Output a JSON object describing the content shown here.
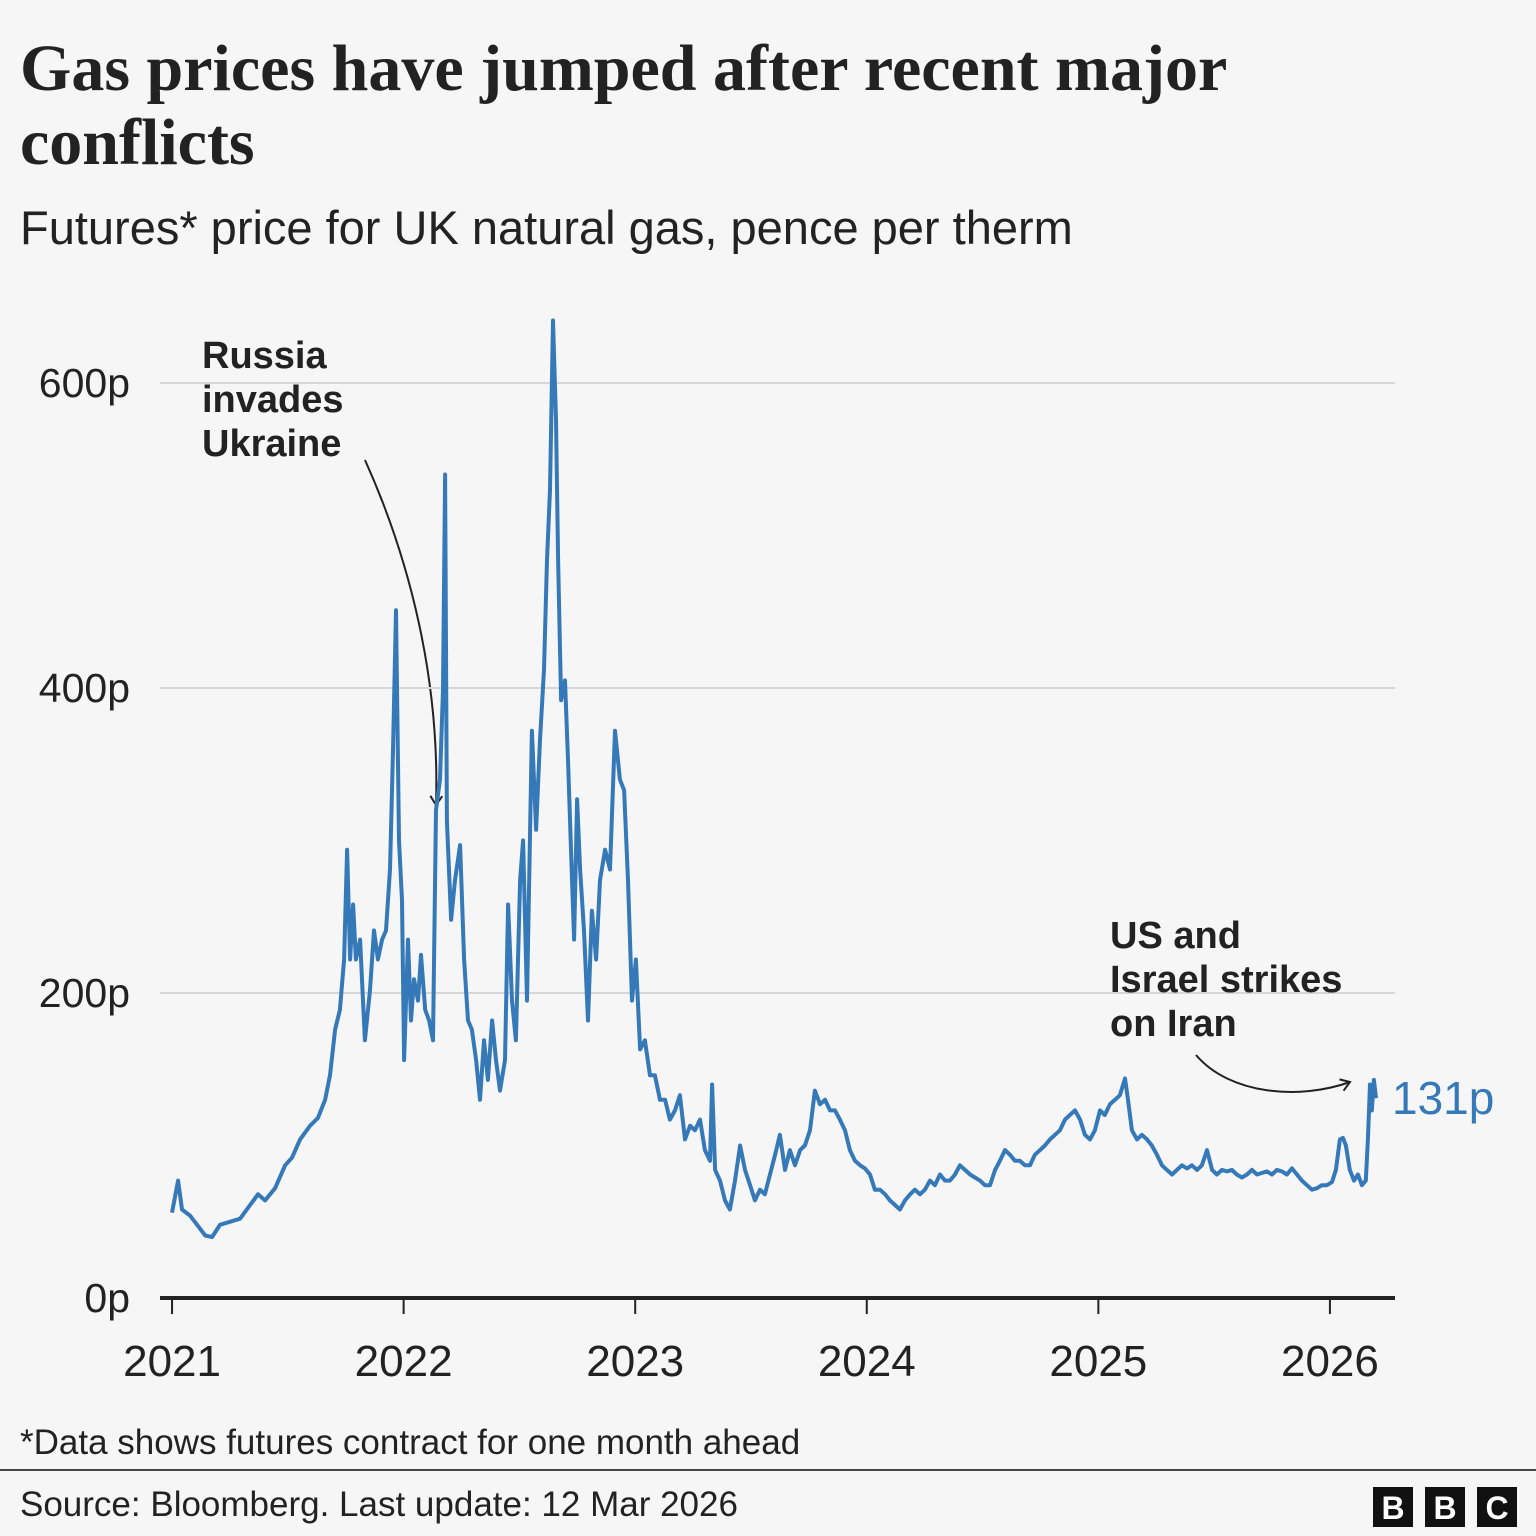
{
  "chart_data": {
    "type": "line",
    "title": "Gas prices have jumped after recent major conflicts",
    "subtitle": "Futures* price for UK natural gas, pence per therm",
    "footnote": "*Data shows futures contract for one month ahead",
    "source": "Source: Bloomberg. Last update: 12 Mar 2026",
    "logo": [
      "B",
      "B",
      "C"
    ],
    "color": "#3579b9",
    "grid": true,
    "xlim": [
      2020.948,
      2026.281
    ],
    "xticks": [
      2021,
      2022,
      2023,
      2024,
      2025,
      2026
    ],
    "ylim": [
      0,
      640
    ],
    "yticks": [
      {
        "value": 0,
        "label": "0p"
      },
      {
        "value": 200,
        "label": "200p"
      },
      {
        "value": 400,
        "label": "400p"
      },
      {
        "value": 600,
        "label": "600p"
      }
    ],
    "end_label": "131p",
    "annotations": [
      {
        "lines": [
          "Russia",
          "invades",
          "Ukraine"
        ]
      },
      {
        "lines": [
          "US and",
          "Israel strikes",
          "on Iran"
        ]
      }
    ],
    "x": [
      2021.0,
      2021.026,
      2021.043,
      2021.078,
      2021.108,
      2021.143,
      2021.173,
      2021.207,
      2021.25,
      2021.294,
      2021.337,
      2021.371,
      2021.402,
      2021.445,
      2021.488,
      2021.518,
      2021.553,
      2021.596,
      2021.63,
      2021.661,
      2021.682,
      2021.704,
      2021.725,
      2021.743,
      2021.756,
      2021.769,
      2021.782,
      2021.794,
      2021.812,
      2021.833,
      2021.855,
      2021.872,
      2021.889,
      2021.907,
      2021.924,
      2021.941,
      2021.954,
      2021.967,
      2021.98,
      2021.993,
      2022.002,
      2022.019,
      2022.032,
      2022.045,
      2022.062,
      2022.075,
      2022.093,
      2022.11,
      2022.127,
      2022.14,
      2022.157,
      2022.17,
      2022.179,
      2022.187,
      2022.205,
      2022.222,
      2022.244,
      2022.261,
      2022.278,
      2022.295,
      2022.313,
      2022.33,
      2022.347,
      2022.364,
      2022.382,
      2022.399,
      2022.416,
      2022.438,
      2022.451,
      2022.468,
      2022.485,
      2022.503,
      2022.516,
      2022.533,
      2022.554,
      2022.572,
      2022.589,
      2022.606,
      2022.619,
      2022.632,
      2022.645,
      2022.658,
      2022.667,
      2022.68,
      2022.697,
      2022.71,
      2022.723,
      2022.736,
      2022.749,
      2022.762,
      2022.779,
      2022.796,
      2022.813,
      2022.831,
      2022.848,
      2022.87,
      2022.891,
      2022.913,
      2022.934,
      2022.952,
      2022.969,
      2022.986,
      2023.003,
      2023.021,
      2023.042,
      2023.064,
      2023.085,
      2023.107,
      2023.129,
      2023.15,
      2023.172,
      2023.193,
      2023.215,
      2023.237,
      2023.258,
      2023.28,
      2023.301,
      2023.323,
      2023.332,
      2023.345,
      2023.366,
      2023.388,
      2023.409,
      2023.431,
      2023.453,
      2023.474,
      2023.496,
      2023.517,
      2023.539,
      2023.56,
      2023.582,
      2023.604,
      2023.625,
      2023.647,
      2023.668,
      2023.69,
      2023.712,
      2023.733,
      2023.755,
      2023.776,
      2023.798,
      2023.82,
      2023.841,
      2023.863,
      2023.884,
      2023.906,
      2023.927,
      2023.949,
      2023.971,
      2023.992,
      2024.014,
      2024.035,
      2024.057,
      2024.079,
      2024.1,
      2024.122,
      2024.143,
      2024.165,
      2024.187,
      2024.208,
      2024.23,
      2024.251,
      2024.273,
      2024.294,
      2024.316,
      2024.338,
      2024.359,
      2024.381,
      2024.402,
      2024.424,
      2024.446,
      2024.467,
      2024.489,
      2024.51,
      2024.532,
      2024.554,
      2024.575,
      2024.597,
      2024.618,
      2024.64,
      2024.661,
      2024.683,
      2024.705,
      2024.726,
      2024.748,
      2024.769,
      2024.791,
      2024.813,
      2024.834,
      2024.856,
      2024.877,
      2024.899,
      2024.921,
      2024.942,
      2024.964,
      2024.985,
      2025.007,
      2025.028,
      2025.05,
      2025.072,
      2025.093,
      2025.115,
      2025.128,
      2025.145,
      2025.167,
      2025.188,
      2025.21,
      2025.231,
      2025.253,
      2025.275,
      2025.296,
      2025.318,
      2025.339,
      2025.361,
      2025.383,
      2025.404,
      2025.426,
      2025.447,
      2025.469,
      2025.491,
      2025.512,
      2025.534,
      2025.555,
      2025.577,
      2025.598,
      2025.62,
      2025.642,
      2025.663,
      2025.685,
      2025.706,
      2025.728,
      2025.75,
      2025.771,
      2025.793,
      2025.814,
      2025.836,
      2025.858,
      2025.879,
      2025.901,
      2025.922,
      2025.944,
      2025.965,
      2025.987,
      2026.009,
      2026.026,
      2026.043,
      2026.056,
      2026.069,
      2026.086,
      2026.104,
      2026.121,
      2026.138,
      2026.155,
      2026.164,
      2026.173,
      2026.181,
      2026.19,
      2026.199
    ],
    "values": [
      56,
      77,
      58,
      54,
      48,
      41,
      40,
      48,
      50,
      52,
      61,
      68,
      64,
      72,
      87,
      92,
      104,
      113,
      118,
      130,
      146,
      176,
      189,
      222,
      294,
      222,
      258,
      222,
      235,
      169,
      202,
      241,
      222,
      235,
      241,
      281,
      359,
      451,
      300,
      261,
      156,
      235,
      182,
      209,
      195,
      225,
      189,
      182,
      169,
      320,
      340,
      399,
      540,
      313,
      248,
      274,
      297,
      222,
      182,
      176,
      156,
      130,
      169,
      143,
      182,
      156,
      136,
      156,
      258,
      195,
      169,
      274,
      300,
      195,
      372,
      307,
      366,
      412,
      484,
      530,
      641,
      576,
      484,
      392,
      405,
      353,
      294,
      235,
      327,
      281,
      241,
      182,
      254,
      222,
      274,
      294,
      281,
      372,
      340,
      333,
      274,
      195,
      222,
      163,
      169,
      146,
      146,
      130,
      130,
      117,
      123,
      133,
      104,
      113,
      110,
      117,
      97,
      90,
      140,
      84,
      77,
      64,
      58,
      77,
      100,
      84,
      74,
      64,
      71,
      68,
      81,
      94,
      107,
      84,
      97,
      87,
      97,
      100,
      110,
      136,
      127,
      130,
      123,
      123,
      117,
      110,
      97,
      90,
      87,
      85,
      81,
      71,
      71,
      68,
      64,
      61,
      58,
      64,
      68,
      71,
      68,
      71,
      77,
      74,
      81,
      77,
      77,
      81,
      87,
      84,
      81,
      79,
      77,
      74,
      74,
      84,
      90,
      97,
      94,
      90,
      90,
      87,
      87,
      94,
      97,
      100,
      104,
      107,
      110,
      117,
      120,
      123,
      117,
      107,
      104,
      110,
      123,
      120,
      127,
      130,
      133,
      144,
      130,
      110,
      104,
      107,
      104,
      100,
      94,
      87,
      84,
      81,
      84,
      87,
      85,
      87,
      84,
      87,
      97,
      84,
      81,
      84,
      83,
      84,
      81,
      79,
      81,
      84,
      81,
      82,
      83,
      81,
      84,
      83,
      81,
      85,
      81,
      77,
      74,
      71,
      72,
      74,
      74,
      76,
      84,
      104,
      105,
      100,
      84,
      77,
      81,
      74,
      77,
      104,
      140,
      123,
      143,
      131
    ]
  }
}
